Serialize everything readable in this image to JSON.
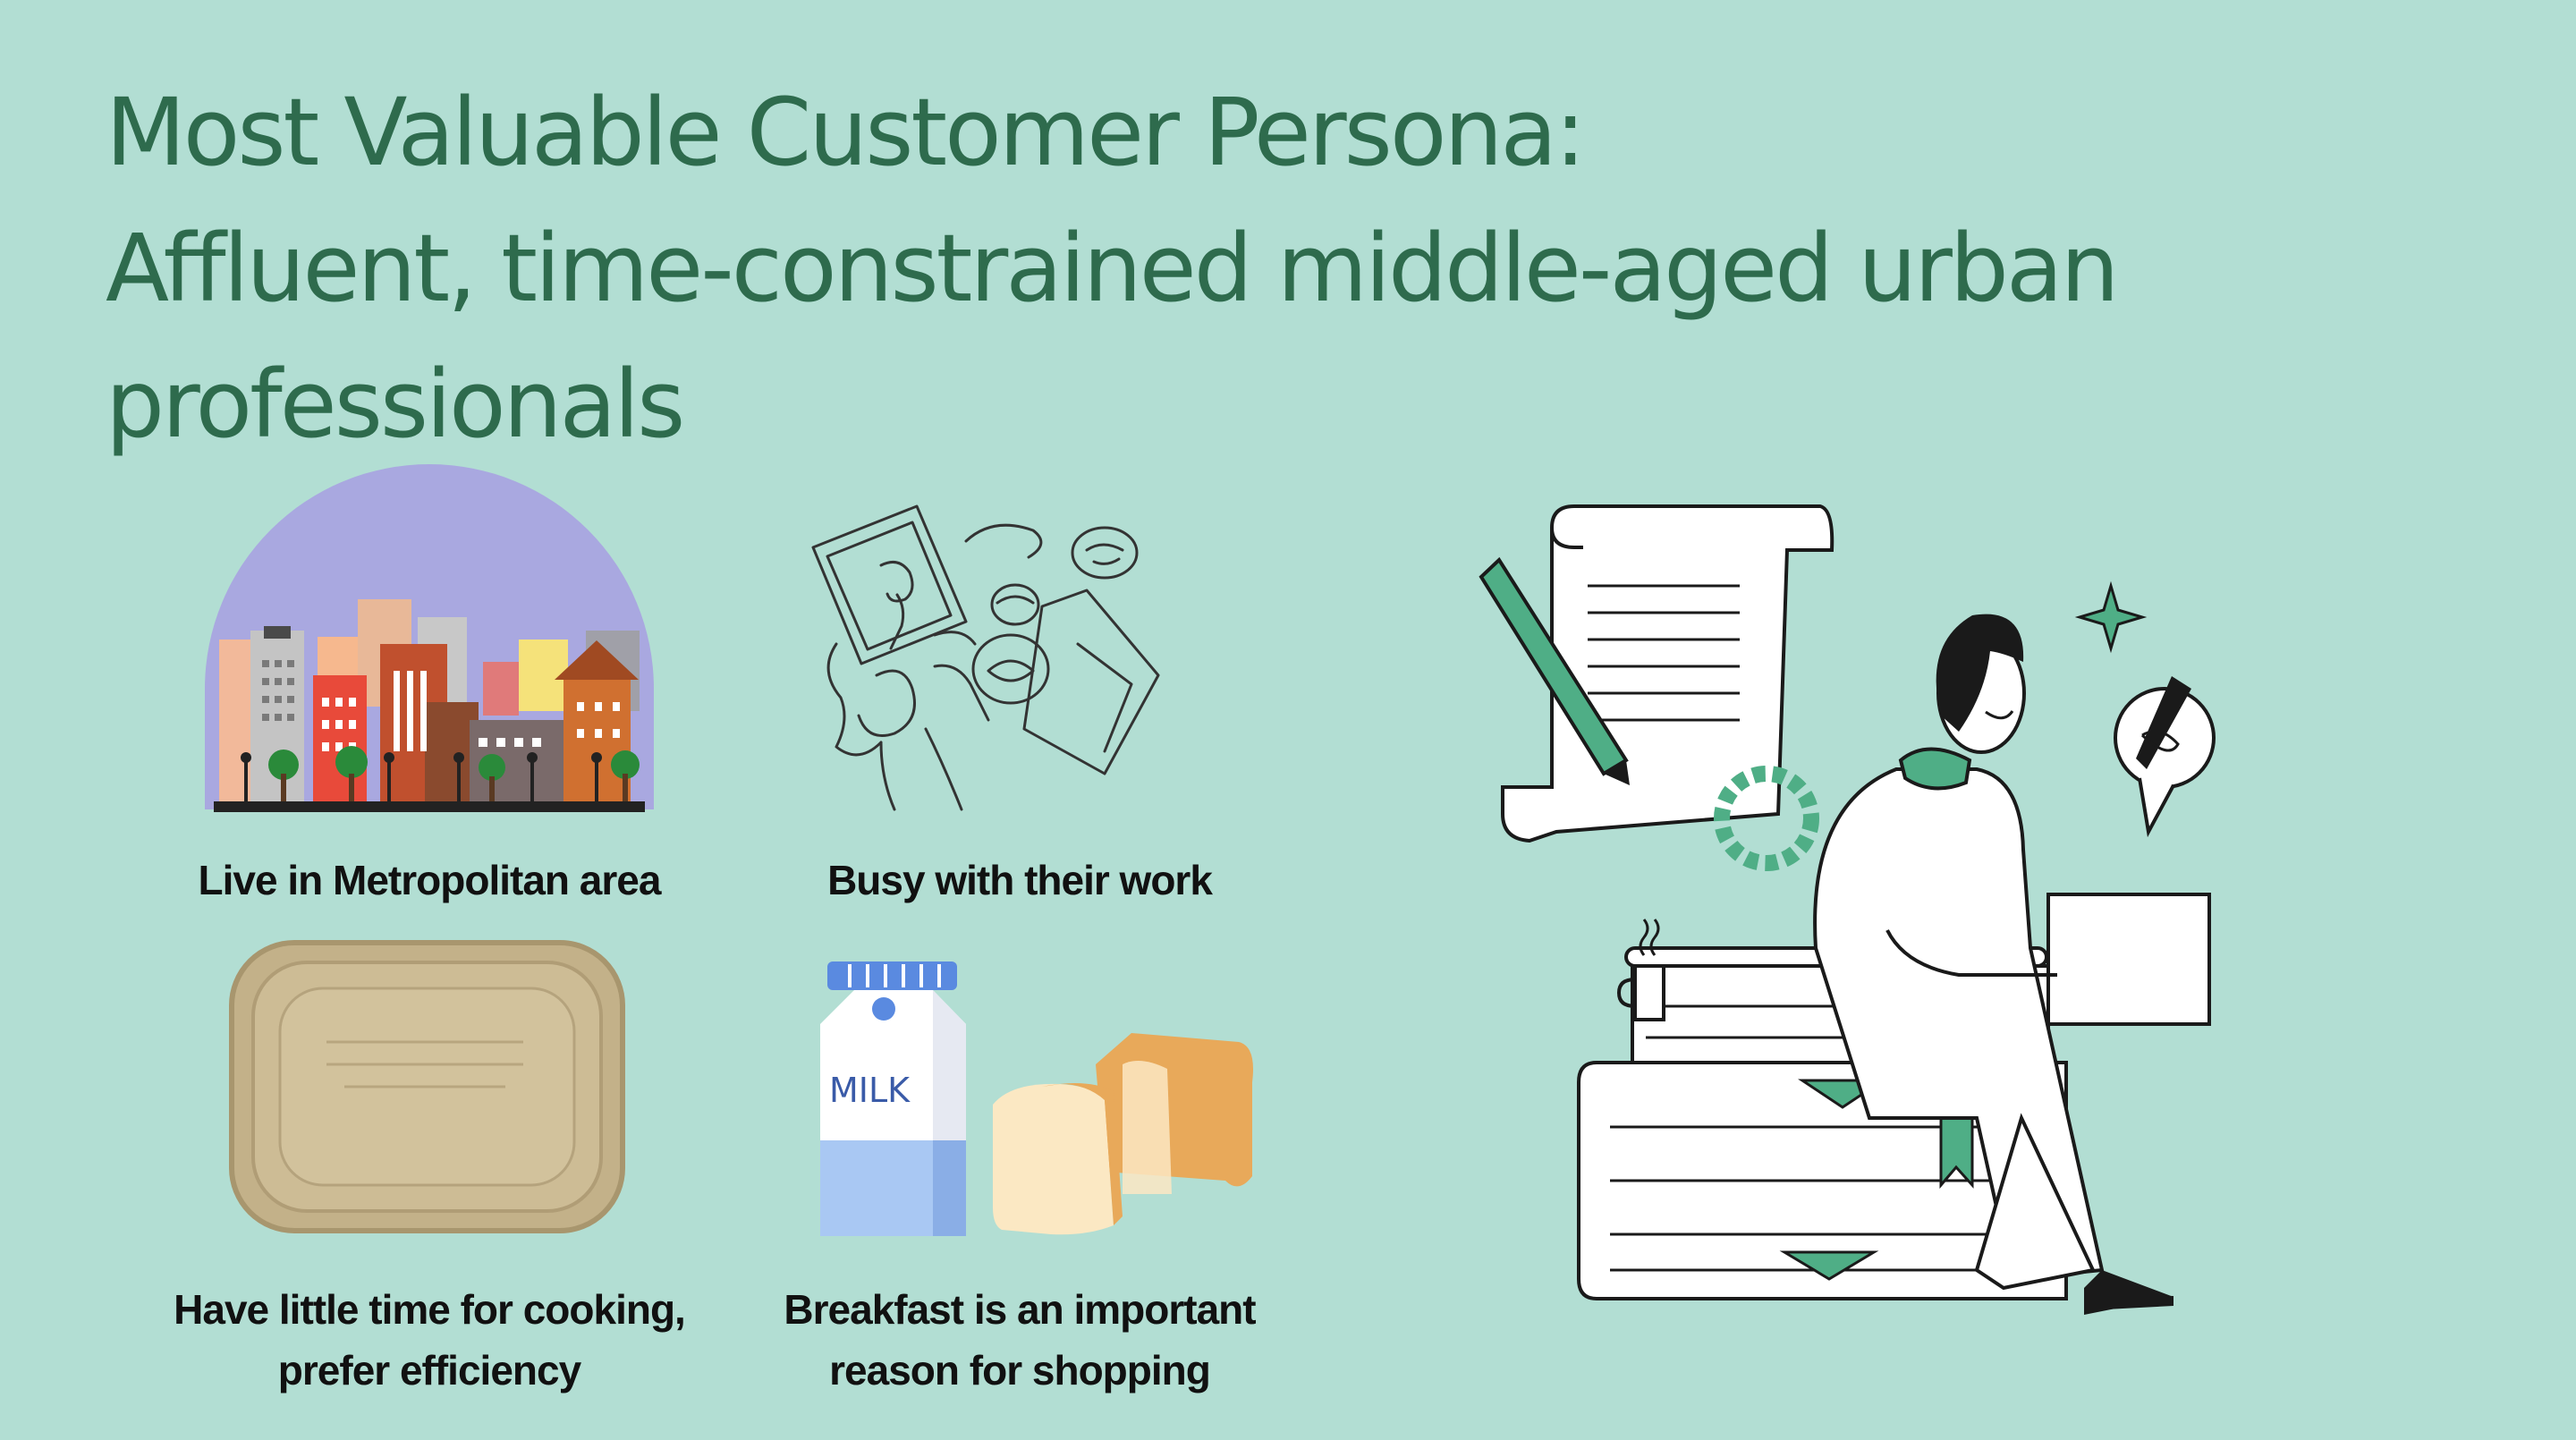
{
  "title": {
    "line1": "Most Valuable Customer Persona:",
    "line2": "Affluent, time-constrained middle-aged urban",
    "line3": "professionals"
  },
  "cards": [
    {
      "caption_lines": [
        "Live in Metropolitan area"
      ],
      "icon": "city-skyline-icon"
    },
    {
      "caption_lines": [
        "Busy  with their work"
      ],
      "icon": "laptop-work-sketch-icon"
    },
    {
      "caption_lines": [
        "Have little time for cooking,",
        "prefer efficiency"
      ],
      "icon": "takeout-container-icon"
    },
    {
      "caption_lines": [
        "Breakfast is an important",
        "reason for shopping"
      ],
      "icon": "milk-bread-icon"
    }
  ],
  "milk_carton_label": "MILK",
  "colors": {
    "background": "#b2ded3",
    "title": "#2e6b4d",
    "caption": "#111111",
    "accent_green": "#4fae86"
  }
}
